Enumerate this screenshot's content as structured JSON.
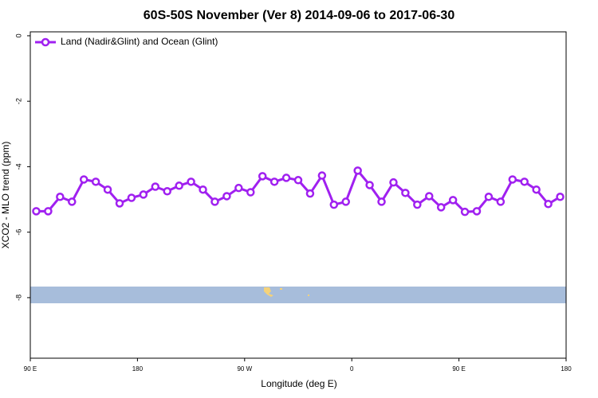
{
  "chart_data": {
    "type": "line",
    "title": "60S-50S November (Ver 8)   2014-09-06 to 2017-06-30",
    "x_label": "Longitude (deg E)",
    "y_label": "XCO2 - MLO trend (ppm)",
    "x": [
      95,
      105,
      115,
      125,
      135,
      145,
      155,
      165,
      175,
      185,
      195,
      205,
      215,
      225,
      235,
      245,
      255,
      265,
      275,
      285,
      295,
      305,
      315,
      325,
      335,
      345,
      355,
      365,
      375,
      385,
      395,
      405,
      415,
      425,
      435,
      445,
      455,
      465,
      475,
      485,
      495,
      505,
      515,
      525,
      535
    ],
    "series": [
      {
        "name": "Land (Nadir&Glint) and Ocean (Glint)",
        "color": "#a020f0",
        "values": [
          -5.36,
          -5.36,
          -4.92,
          -5.07,
          -4.39,
          -4.46,
          -4.7,
          -5.12,
          -4.95,
          -4.85,
          -4.61,
          -4.75,
          -4.58,
          -4.46,
          -4.7,
          -5.07,
          -4.9,
          -4.65,
          -4.78,
          -4.29,
          -4.46,
          -4.34,
          -4.41,
          -4.82,
          -4.27,
          -5.16,
          -5.07,
          -4.12,
          -4.56,
          -5.07,
          -4.48,
          -4.8,
          -5.16,
          -4.9,
          -5.24,
          -5.02,
          -5.38,
          -5.36,
          -4.92,
          -5.07,
          -4.39,
          -4.46,
          -4.7,
          -5.14,
          -4.92
        ]
      }
    ],
    "xlim": [
      90,
      540
    ],
    "ylim": [
      -9.85,
      0.12
    ],
    "xticks": [
      {
        "value": 90,
        "label": "90 E"
      },
      180,
      {
        "value": 270,
        "label": "90 W"
      },
      {
        "value": 360,
        "label": "0"
      },
      {
        "value": 450,
        "label": "90 E"
      },
      {
        "value": 540,
        "label": "180"
      }
    ],
    "yticks": [
      0,
      -2,
      -4,
      -6,
      -8
    ],
    "legend": "top-left"
  }
}
